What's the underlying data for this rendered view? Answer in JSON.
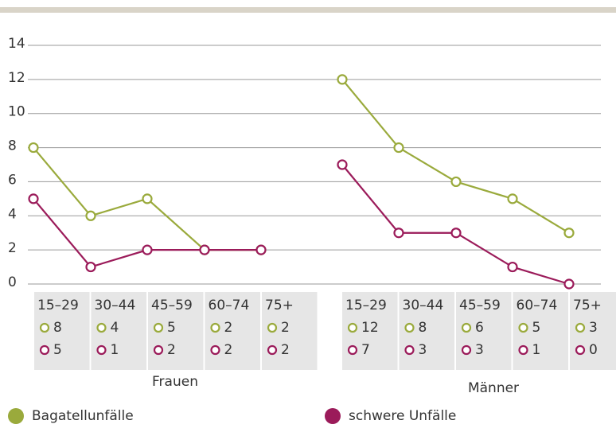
{
  "chart_data": {
    "type": "line",
    "categories": [
      "15–29",
      "30–44",
      "45–59",
      "60–74",
      "75+"
    ],
    "groups": [
      "Frauen",
      "Männer"
    ],
    "series": [
      {
        "name": "Bagatellunfälle",
        "color": "#9aaa3c",
        "values": [
          [
            8,
            4,
            5,
            2,
            2
          ],
          [
            12,
            8,
            6,
            5,
            3
          ]
        ]
      },
      {
        "name": "schwere Unfälle",
        "color": "#9b1b5a",
        "values": [
          [
            5,
            1,
            2,
            2,
            2
          ],
          [
            7,
            3,
            3,
            1,
            0
          ]
        ]
      }
    ],
    "ylim": [
      0,
      14
    ],
    "yticks": [
      0,
      2,
      4,
      6,
      8,
      10,
      12,
      14
    ],
    "grid": true
  }
}
